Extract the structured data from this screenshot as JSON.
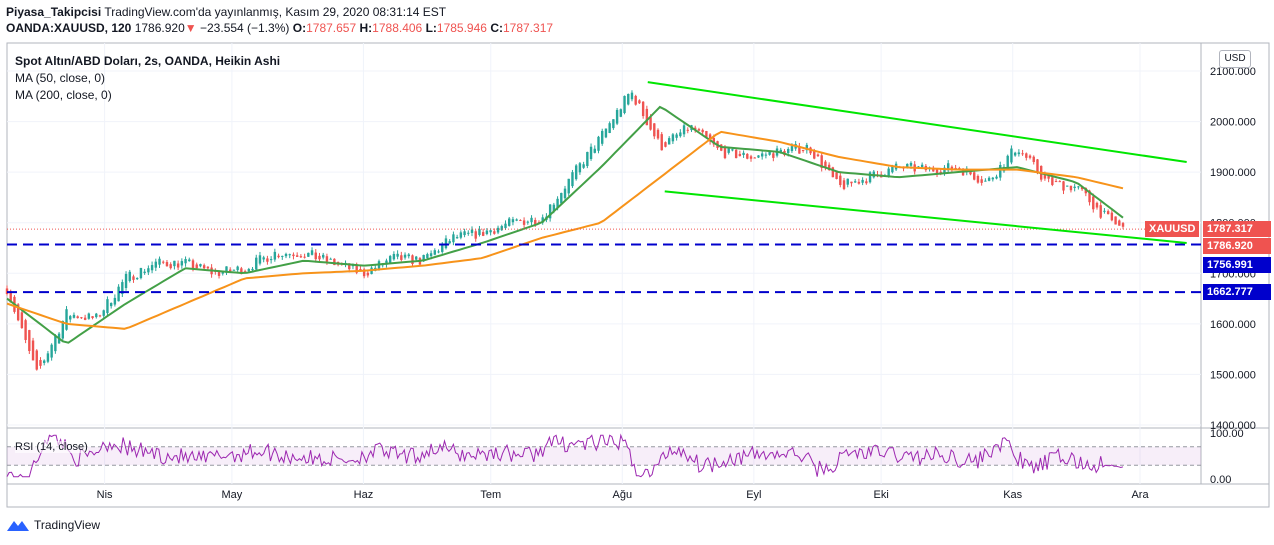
{
  "header": {
    "publisher": "Piyasa_Takipcisi",
    "published_text": "TradingView.com'da yayınlanmış, Kasım 29, 2020 08:31:14 EST",
    "symbol": "OANDA:XAUUSD, 120",
    "last": "1786.920",
    "change": "−23.554 (−1.3%)",
    "o_label": "O:",
    "o": "1787.657",
    "h_label": "H:",
    "h": "1788.406",
    "l_label": "L:",
    "l": "1785.946",
    "c_label": "C:",
    "c": "1787.317"
  },
  "legend": {
    "title": "Spot Altın/ABD Doları, 2s, OANDA, Heikin Ashi",
    "ma50": "MA (50, close, 0)",
    "ma200": "MA (200, close, 0)",
    "rsi": "RSI (14, close)"
  },
  "currency": "USD",
  "price_tags": {
    "symbol_tag": "XAUUSD",
    "close_tag": "1787.317",
    "last_tag": "1786.920",
    "level1": "1756.991",
    "level2": "1662.777"
  },
  "footer": {
    "brand": "TradingView"
  },
  "colors": {
    "up": "#26a69a",
    "down": "#ef5350",
    "ma50": "#43a047",
    "ma200": "#f7931a",
    "channel": "#00e600",
    "level": "#0000cc",
    "rsi": "#9c27b0",
    "tag_red": "#ef5350",
    "tag_blue": "#0000cc"
  },
  "chart_data": {
    "type": "line",
    "x_tick_labels": [
      "Nis",
      "May",
      "Haz",
      "Tem",
      "Ağu",
      "Eyl",
      "Eki",
      "Kas",
      "Ara"
    ],
    "y_tick_labels": [
      "2100.000",
      "2000.000",
      "1900.000",
      "1800.000",
      "1700.000",
      "1600.000",
      "1500.000",
      "1400.000"
    ],
    "y_ticks": [
      2100,
      2000,
      1900,
      1800,
      1700,
      1600,
      1500,
      1400
    ],
    "ylim": [
      1385,
      2130
    ],
    "grid": true,
    "series": [
      {
        "name": "OANDA:XAUUSD",
        "style": "heikin-ashi",
        "x": [
          "2020-03-09",
          "2020-03-16",
          "2020-03-23",
          "2020-03-30",
          "2020-04-06",
          "2020-04-13",
          "2020-04-20",
          "2020-04-27",
          "2020-05-04",
          "2020-05-11",
          "2020-05-18",
          "2020-05-25",
          "2020-06-01",
          "2020-06-08",
          "2020-06-15",
          "2020-06-22",
          "2020-06-29",
          "2020-07-06",
          "2020-07-13",
          "2020-07-20",
          "2020-07-27",
          "2020-08-03",
          "2020-08-10",
          "2020-08-17",
          "2020-08-24",
          "2020-08-31",
          "2020-09-07",
          "2020-09-14",
          "2020-09-21",
          "2020-09-28",
          "2020-10-05",
          "2020-10-12",
          "2020-10-19",
          "2020-10-26",
          "2020-11-02",
          "2020-11-09",
          "2020-11-16",
          "2020-11-23",
          "2020-11-27"
        ],
        "values": [
          1670,
          1500,
          1620,
          1610,
          1690,
          1720,
          1720,
          1700,
          1710,
          1740,
          1740,
          1720,
          1700,
          1730,
          1725,
          1770,
          1780,
          1800,
          1810,
          1890,
          1970,
          2060,
          1950,
          1990,
          1940,
          1930,
          1940,
          1950,
          1870,
          1890,
          1910,
          1905,
          1910,
          1880,
          1950,
          1880,
          1870,
          1810,
          1787
        ]
      },
      {
        "name": "MA (50, close, 0)",
        "x": [
          "2020-03-09",
          "2020-03-23",
          "2020-04-06",
          "2020-04-20",
          "2020-05-04",
          "2020-05-18",
          "2020-06-01",
          "2020-06-15",
          "2020-06-29",
          "2020-07-13",
          "2020-07-27",
          "2020-08-10",
          "2020-08-24",
          "2020-09-07",
          "2020-09-21",
          "2020-10-05",
          "2020-10-19",
          "2020-11-02",
          "2020-11-16",
          "2020-11-27"
        ],
        "values": [
          1650,
          1560,
          1640,
          1710,
          1700,
          1725,
          1715,
          1725,
          1760,
          1800,
          1910,
          2030,
          1950,
          1940,
          1900,
          1890,
          1900,
          1910,
          1880,
          1810
        ]
      },
      {
        "name": "MA (200, close, 0)",
        "x": [
          "2020-03-09",
          "2020-03-23",
          "2020-04-06",
          "2020-04-20",
          "2020-05-04",
          "2020-05-18",
          "2020-06-01",
          "2020-06-15",
          "2020-06-29",
          "2020-07-13",
          "2020-07-27",
          "2020-08-10",
          "2020-08-24",
          "2020-09-07",
          "2020-09-21",
          "2020-10-05",
          "2020-10-19",
          "2020-11-02",
          "2020-11-16",
          "2020-11-27"
        ],
        "values": [
          1640,
          1600,
          1590,
          1640,
          1690,
          1700,
          1705,
          1715,
          1730,
          1770,
          1800,
          1890,
          1980,
          1960,
          1930,
          1910,
          1905,
          1905,
          1890,
          1868
        ]
      }
    ],
    "annotations": {
      "horizontal_levels": [
        1756.991,
        1662.777
      ],
      "channel_upper": {
        "from": [
          "2020-08-07",
          2078
        ],
        "to": [
          "2020-12-12",
          1920
        ]
      },
      "channel_lower": {
        "from": [
          "2020-08-11",
          1862
        ],
        "to": [
          "2020-12-12",
          1760
        ]
      }
    },
    "rsi": {
      "name": "RSI (14, close)",
      "y_tick_labels": [
        "100.00",
        "0.00"
      ],
      "bands": [
        70,
        30
      ],
      "last": 28
    }
  }
}
